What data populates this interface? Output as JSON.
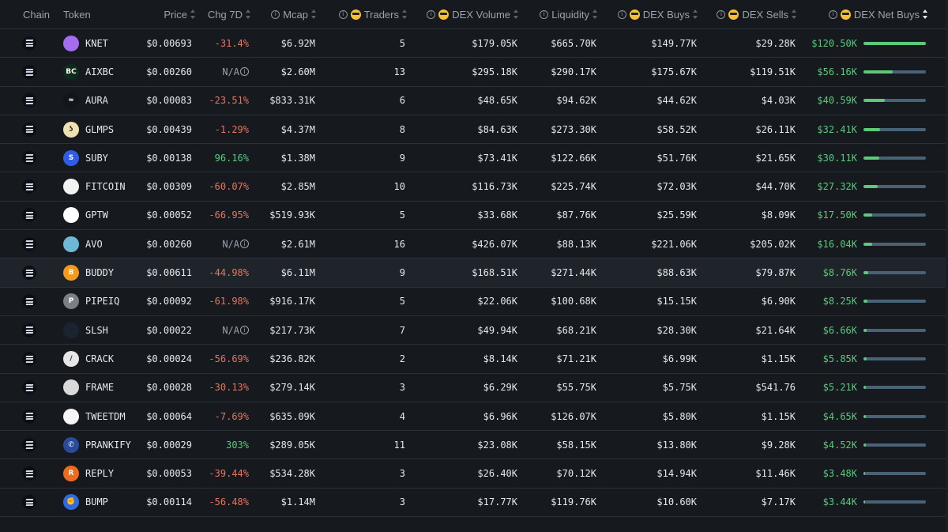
{
  "header": {
    "chain": "Chain",
    "token": "Token",
    "price": "Price",
    "chg7d": "Chg 7D",
    "mcap": "Mcap",
    "traders": "Traders",
    "dex_volume": "DEX Volume",
    "liquidity": "Liquidity",
    "dex_buys": "DEX Buys",
    "dex_sells": "DEX Sells",
    "dex_net_buys": "DEX Net Buys"
  },
  "colors": {
    "positive": "#5cc97b",
    "negative": "#e8735f",
    "bar_track": "#4a6275",
    "background": "#161a1f"
  },
  "rows": [
    {
      "token": "KNET",
      "logo_color": "#a56cf0",
      "logo_text": "",
      "price": "$0.00693",
      "chg": "-31.4%",
      "chg_type": "neg",
      "mcap": "$6.92M",
      "traders": "5",
      "volume": "$179.05K",
      "liquidity": "$665.70K",
      "buys": "$149.77K",
      "sells": "$29.28K",
      "net": "$120.50K",
      "net_fraction": 1.0
    },
    {
      "token": "AIXBC",
      "logo_color": "#0e2a1a",
      "logo_text": "BC",
      "price": "$0.00260",
      "chg": "N/A",
      "chg_type": "na",
      "mcap": "$2.60M",
      "traders": "13",
      "volume": "$295.18K",
      "liquidity": "$290.17K",
      "buys": "$175.67K",
      "sells": "$119.51K",
      "net": "$56.16K",
      "net_fraction": 0.466
    },
    {
      "token": "AURA",
      "logo_color": "#11161c",
      "logo_text": "≈",
      "price": "$0.00083",
      "chg": "-23.51%",
      "chg_type": "neg",
      "mcap": "$833.31K",
      "traders": "6",
      "volume": "$48.65K",
      "liquidity": "$94.62K",
      "buys": "$44.62K",
      "sells": "$4.03K",
      "net": "$40.59K",
      "net_fraction": 0.337
    },
    {
      "token": "GLMPS",
      "logo_color": "#f0e2b0",
      "logo_text": "ʖ",
      "price": "$0.00439",
      "chg": "-1.29%",
      "chg_type": "neg",
      "mcap": "$4.37M",
      "traders": "8",
      "volume": "$84.63K",
      "liquidity": "$273.30K",
      "buys": "$58.52K",
      "sells": "$26.11K",
      "net": "$32.41K",
      "net_fraction": 0.269
    },
    {
      "token": "SUBY",
      "logo_color": "#2e5de8",
      "logo_text": "S",
      "price": "$0.00138",
      "chg": "96.16%",
      "chg_type": "pos",
      "mcap": "$1.38M",
      "traders": "9",
      "volume": "$73.41K",
      "liquidity": "$122.66K",
      "buys": "$51.76K",
      "sells": "$21.65K",
      "net": "$30.11K",
      "net_fraction": 0.25
    },
    {
      "token": "FITCOIN",
      "logo_color": "#f2f2f2",
      "logo_text": "",
      "price": "$0.00309",
      "chg": "-60.07%",
      "chg_type": "neg",
      "mcap": "$2.85M",
      "traders": "10",
      "volume": "$116.73K",
      "liquidity": "$225.74K",
      "buys": "$72.03K",
      "sells": "$44.70K",
      "net": "$27.32K",
      "net_fraction": 0.227
    },
    {
      "token": "GPTW",
      "logo_color": "#ffffff",
      "logo_text": "",
      "price": "$0.00052",
      "chg": "-66.95%",
      "chg_type": "neg",
      "mcap": "$519.93K",
      "traders": "5",
      "volume": "$33.68K",
      "liquidity": "$87.76K",
      "buys": "$25.59K",
      "sells": "$8.09K",
      "net": "$17.50K",
      "net_fraction": 0.145
    },
    {
      "token": "AVO",
      "logo_color": "#6fb7d6",
      "logo_text": "",
      "price": "$0.00260",
      "chg": "N/A",
      "chg_type": "na",
      "mcap": "$2.61M",
      "traders": "16",
      "volume": "$426.07K",
      "liquidity": "$88.13K",
      "buys": "$221.06K",
      "sells": "$205.02K",
      "net": "$16.04K",
      "net_fraction": 0.133
    },
    {
      "token": "BUDDY",
      "logo_color": "#f39a1c",
      "logo_text": "B",
      "price": "$0.00611",
      "chg": "-44.98%",
      "chg_type": "neg",
      "mcap": "$6.11M",
      "traders": "9",
      "volume": "$168.51K",
      "liquidity": "$271.44K",
      "buys": "$88.63K",
      "sells": "$79.87K",
      "net": "$8.76K",
      "net_fraction": 0.073
    },
    {
      "token": "PIPEIQ",
      "logo_color": "#7b7f86",
      "logo_text": "P",
      "price": "$0.00092",
      "chg": "-61.98%",
      "chg_type": "neg",
      "mcap": "$916.17K",
      "traders": "5",
      "volume": "$22.06K",
      "liquidity": "$100.68K",
      "buys": "$15.15K",
      "sells": "$6.90K",
      "net": "$8.25K",
      "net_fraction": 0.068
    },
    {
      "token": "SLSH",
      "logo_color": "#1a2430",
      "logo_text": "",
      "price": "$0.00022",
      "chg": "N/A",
      "chg_type": "na",
      "mcap": "$217.73K",
      "traders": "7",
      "volume": "$49.94K",
      "liquidity": "$68.21K",
      "buys": "$28.30K",
      "sells": "$21.64K",
      "net": "$6.66K",
      "net_fraction": 0.055
    },
    {
      "token": "CRACK",
      "logo_color": "#e6e6e6",
      "logo_text": "/",
      "price": "$0.00024",
      "chg": "-56.69%",
      "chg_type": "neg",
      "mcap": "$236.82K",
      "traders": "2",
      "volume": "$8.14K",
      "liquidity": "$71.21K",
      "buys": "$6.99K",
      "sells": "$1.15K",
      "net": "$5.85K",
      "net_fraction": 0.049
    },
    {
      "token": "FRAME",
      "logo_color": "#d9d9d9",
      "logo_text": "",
      "price": "$0.00028",
      "chg": "-30.13%",
      "chg_type": "neg",
      "mcap": "$279.14K",
      "traders": "3",
      "volume": "$6.29K",
      "liquidity": "$55.75K",
      "buys": "$5.75K",
      "sells": "$541.76",
      "net": "$5.21K",
      "net_fraction": 0.043
    },
    {
      "token": "TWEETDM",
      "logo_color": "#f5f5f5",
      "logo_text": "",
      "price": "$0.00064",
      "chg": "-7.69%",
      "chg_type": "neg",
      "mcap": "$635.09K",
      "traders": "4",
      "volume": "$6.96K",
      "liquidity": "$126.07K",
      "buys": "$5.80K",
      "sells": "$1.15K",
      "net": "$4.65K",
      "net_fraction": 0.039
    },
    {
      "token": "PRANKIFY",
      "logo_color": "#2a4a9a",
      "logo_text": "✆",
      "price": "$0.00029",
      "chg": "303%",
      "chg_type": "pos",
      "mcap": "$289.05K",
      "traders": "11",
      "volume": "$23.08K",
      "liquidity": "$58.15K",
      "buys": "$13.80K",
      "sells": "$9.28K",
      "net": "$4.52K",
      "net_fraction": 0.038
    },
    {
      "token": "REPLY",
      "logo_color": "#f06a1c",
      "logo_text": "R",
      "price": "$0.00053",
      "chg": "-39.44%",
      "chg_type": "neg",
      "mcap": "$534.28K",
      "traders": "3",
      "volume": "$26.40K",
      "liquidity": "$70.12K",
      "buys": "$14.94K",
      "sells": "$11.46K",
      "net": "$3.48K",
      "net_fraction": 0.029
    },
    {
      "token": "BUMP",
      "logo_color": "#2f6be0",
      "logo_text": "✊",
      "price": "$0.00114",
      "chg": "-56.48%",
      "chg_type": "neg",
      "mcap": "$1.14M",
      "traders": "3",
      "volume": "$17.77K",
      "liquidity": "$119.76K",
      "buys": "$10.60K",
      "sells": "$7.17K",
      "net": "$3.44K",
      "net_fraction": 0.029
    }
  ]
}
